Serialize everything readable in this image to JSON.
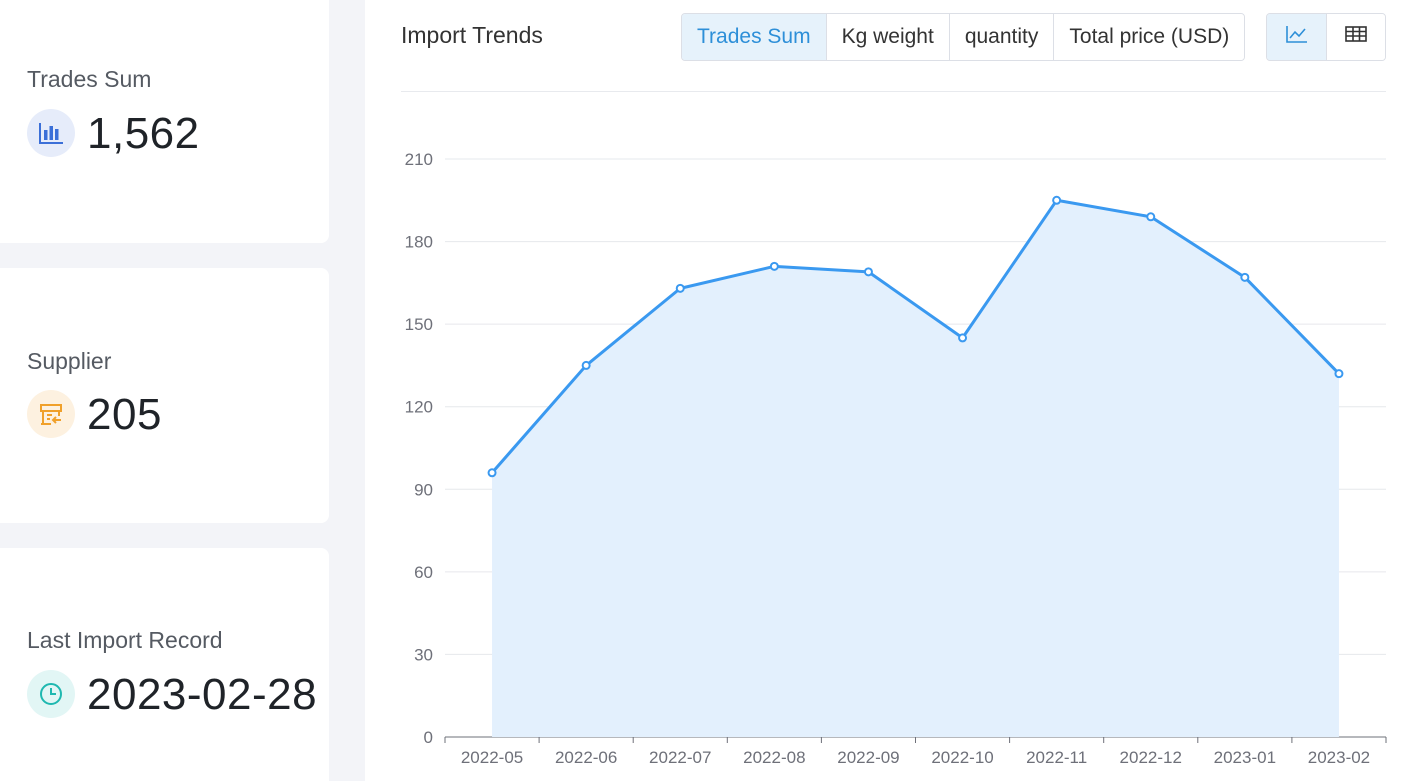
{
  "stats": [
    {
      "label": "Trades Sum",
      "value": "1,562",
      "icon": "bar-chart-icon",
      "accent": "#3b6fd8",
      "bg": "#e6ecfa"
    },
    {
      "label": "Supplier",
      "value": "205",
      "icon": "supplier-store-icon",
      "accent": "#f0a02a",
      "bg": "#fdf1e0"
    },
    {
      "label": "Last Import Record",
      "value": "2023-02-28",
      "icon": "clock-icon",
      "accent": "#1fb8b0",
      "bg": "#e2f6f5"
    }
  ],
  "panel": {
    "title": "Import Trends",
    "metric_tabs": [
      "Trades Sum",
      "Kg weight",
      "quantity",
      "Total price (USD)"
    ],
    "active_tab": "Trades Sum",
    "view_buttons": [
      "line-chart-icon",
      "table-icon"
    ],
    "active_view": "line-chart-icon"
  },
  "chart_data": {
    "type": "area",
    "categories": [
      "2022-05",
      "2022-06",
      "2022-07",
      "2022-08",
      "2022-09",
      "2022-10",
      "2022-11",
      "2022-12",
      "2023-01",
      "2023-02"
    ],
    "series": [
      {
        "values": [
          96,
          135,
          163,
          171,
          169,
          145,
          195,
          189,
          167,
          132
        ]
      }
    ],
    "ylim": [
      0,
      210
    ],
    "yticks": [
      0,
      30,
      60,
      90,
      120,
      150,
      180,
      210
    ],
    "grid": true,
    "line_color": "#3a99f0",
    "fill_color": "#e3f0fd"
  }
}
